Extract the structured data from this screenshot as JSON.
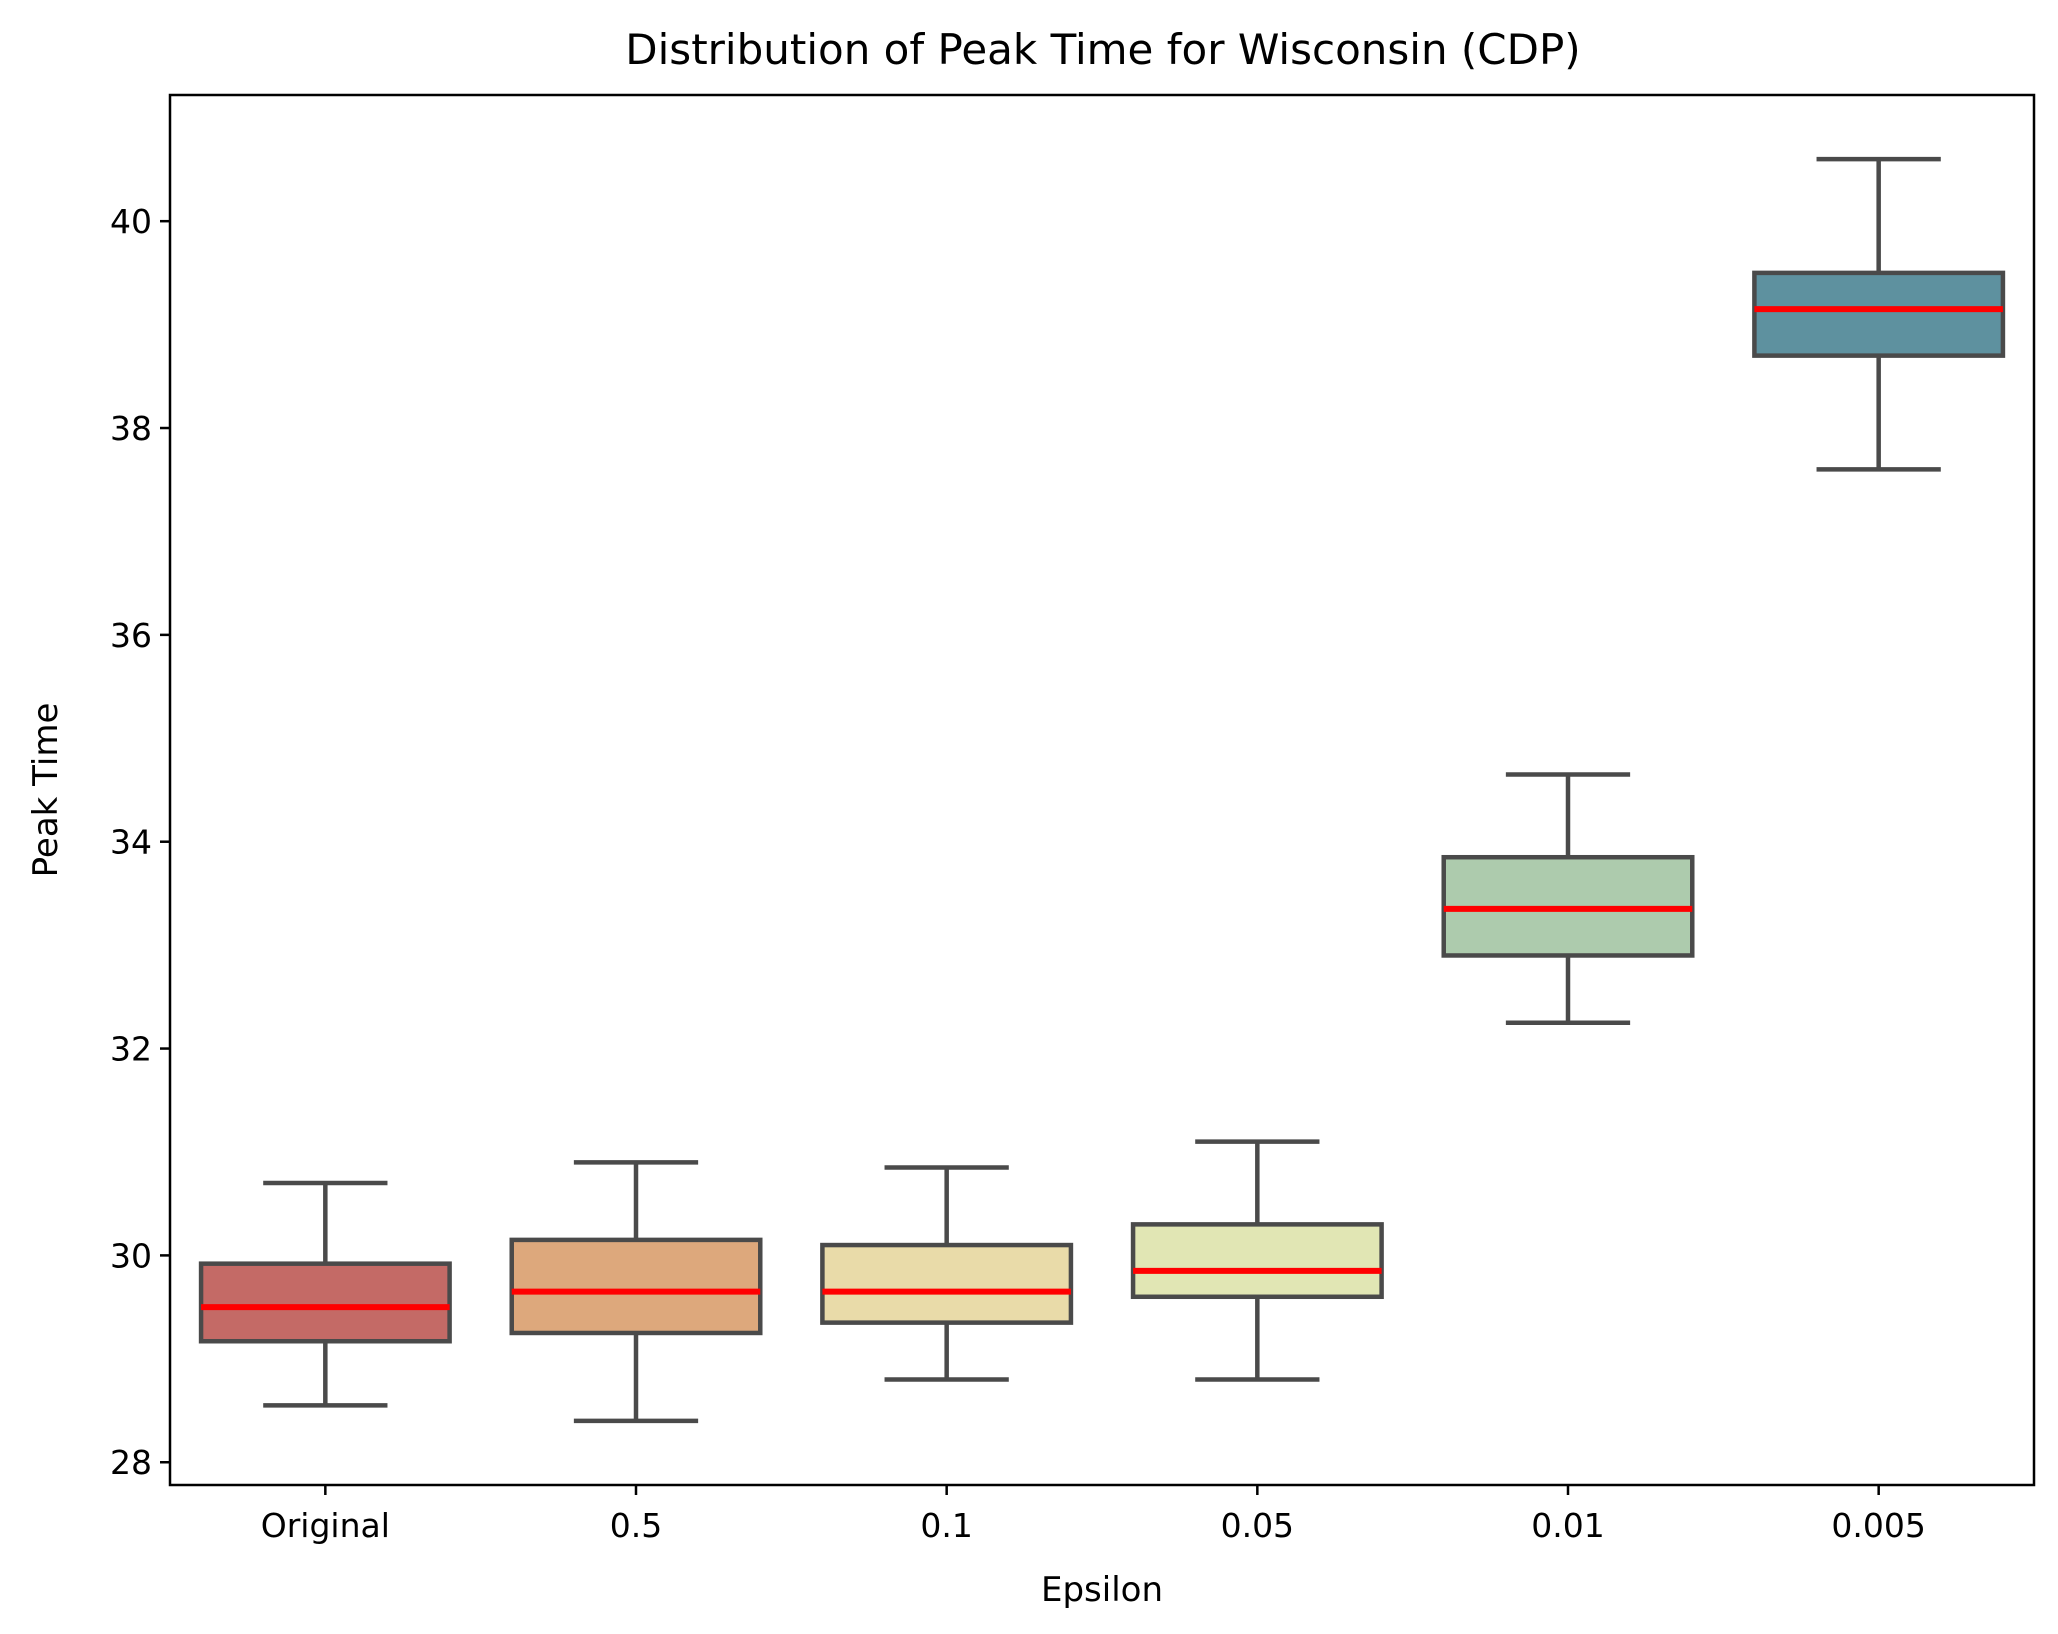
{
  "chart_data": {
    "type": "box",
    "title": "Distribution of Peak Time for Wisconsin (CDP)",
    "xlabel": "Epsilon",
    "ylabel": "Peak Time",
    "ylim": [
      27.78,
      41.22
    ],
    "yticks": [
      28,
      30,
      32,
      34,
      36,
      38,
      40
    ],
    "ytick_labels": [
      "28",
      "30",
      "32",
      "34",
      "36",
      "38",
      "40"
    ],
    "categories": [
      "Original",
      "0.5",
      "0.1",
      "0.05",
      "0.01",
      "0.005"
    ],
    "median_color": "#ff0000",
    "box_edge_color": "#4a4a4a",
    "grid": false,
    "legend": "none",
    "boxes": [
      {
        "category": "Original",
        "whisker_low": 28.55,
        "q1": 29.17,
        "median": 29.5,
        "q3": 29.92,
        "whisker_high": 30.7,
        "color": "#c46a66"
      },
      {
        "category": "0.5",
        "whisker_low": 28.4,
        "q1": 29.25,
        "median": 29.65,
        "q3": 30.15,
        "whisker_high": 30.9,
        "color": "#dda87c"
      },
      {
        "category": "0.1",
        "whisker_low": 28.8,
        "q1": 29.35,
        "median": 29.65,
        "q3": 30.1,
        "whisker_high": 30.85,
        "color": "#e9dba9"
      },
      {
        "category": "0.05",
        "whisker_low": 28.8,
        "q1": 29.6,
        "median": 29.85,
        "q3": 30.3,
        "whisker_high": 31.1,
        "color": "#e1e6b4"
      },
      {
        "category": "0.01",
        "whisker_low": 32.25,
        "q1": 32.9,
        "median": 33.35,
        "q3": 33.85,
        "whisker_high": 34.65,
        "color": "#adcbad"
      },
      {
        "category": "0.005",
        "whisker_low": 37.6,
        "q1": 38.7,
        "median": 39.15,
        "q3": 39.5,
        "whisker_high": 40.6,
        "color": "#5e919f"
      }
    ]
  }
}
